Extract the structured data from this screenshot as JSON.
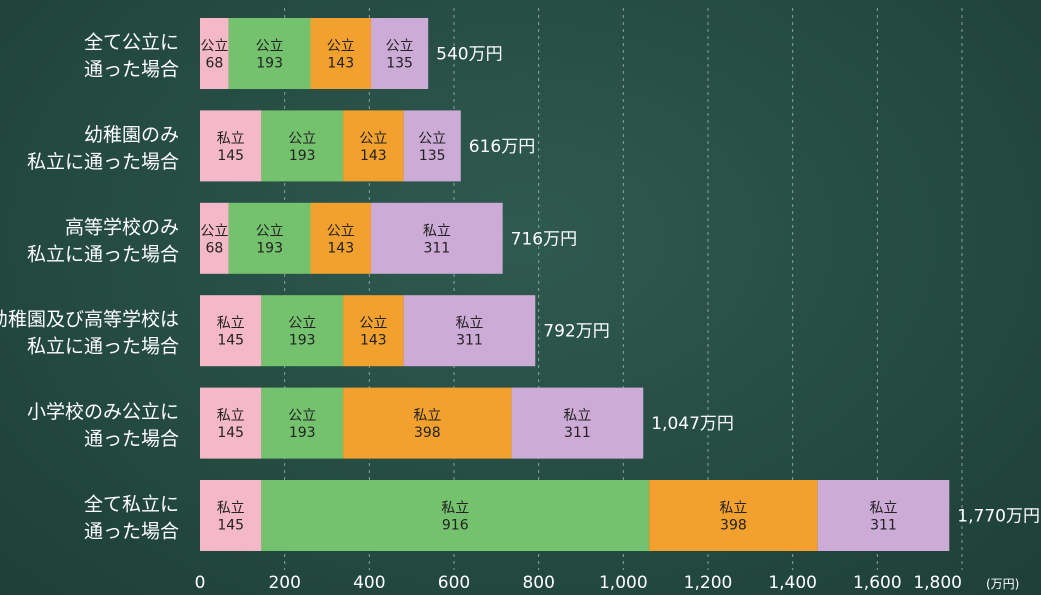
{
  "chart_data": {
    "type": "bar",
    "orientation": "horizontal",
    "stacked": true,
    "categories": [
      [
        "全て公立に",
        "通った場合"
      ],
      [
        "幼稚園のみ",
        "私立に通った場合"
      ],
      [
        "高等学校のみ",
        "私立に通った場合"
      ],
      [
        "幼稚園及び高等学校は",
        "私立に通った場合"
      ],
      [
        "小学校のみ公立に",
        "通った場合"
      ],
      [
        "全て私立に",
        "通った場合"
      ]
    ],
    "stack_colors": [
      "#f5b8c8",
      "#74c26d",
      "#f2a12e",
      "#cdabd7"
    ],
    "rows": [
      {
        "segments": [
          {
            "label": "公立",
            "value": 68
          },
          {
            "label": "公立",
            "value": 193
          },
          {
            "label": "公立",
            "value": 143
          },
          {
            "label": "公立",
            "value": 135
          }
        ],
        "total": "540万円"
      },
      {
        "segments": [
          {
            "label": "私立",
            "value": 145
          },
          {
            "label": "公立",
            "value": 193
          },
          {
            "label": "公立",
            "value": 143
          },
          {
            "label": "公立",
            "value": 135
          }
        ],
        "total": "616万円"
      },
      {
        "segments": [
          {
            "label": "公立",
            "value": 68
          },
          {
            "label": "公立",
            "value": 193
          },
          {
            "label": "公立",
            "value": 143
          },
          {
            "label": "私立",
            "value": 311
          }
        ],
        "total": "716万円"
      },
      {
        "segments": [
          {
            "label": "私立",
            "value": 145
          },
          {
            "label": "公立",
            "value": 193
          },
          {
            "label": "公立",
            "value": 143
          },
          {
            "label": "私立",
            "value": 311
          }
        ],
        "total": "792万円"
      },
      {
        "segments": [
          {
            "label": "私立",
            "value": 145
          },
          {
            "label": "公立",
            "value": 193
          },
          {
            "label": "私立",
            "value": 398
          },
          {
            "label": "私立",
            "value": 311
          }
        ],
        "total": "1,047万円"
      },
      {
        "segments": [
          {
            "label": "私立",
            "value": 145
          },
          {
            "label": "私立",
            "value": 916
          },
          {
            "label": "私立",
            "value": 398
          },
          {
            "label": "私立",
            "value": 311
          }
        ],
        "total": "1,770万円"
      }
    ],
    "xlim": [
      0,
      1800
    ],
    "xticks": [
      0,
      200,
      400,
      600,
      800,
      1000,
      1200,
      1400,
      1600,
      1800
    ],
    "xtick_labels": [
      "0",
      "200",
      "400",
      "600",
      "800",
      "1,000",
      "1,200",
      "1,400",
      "1,600",
      "1,800"
    ],
    "x_unit": "(万円)",
    "grid": "vertical-dashed"
  }
}
